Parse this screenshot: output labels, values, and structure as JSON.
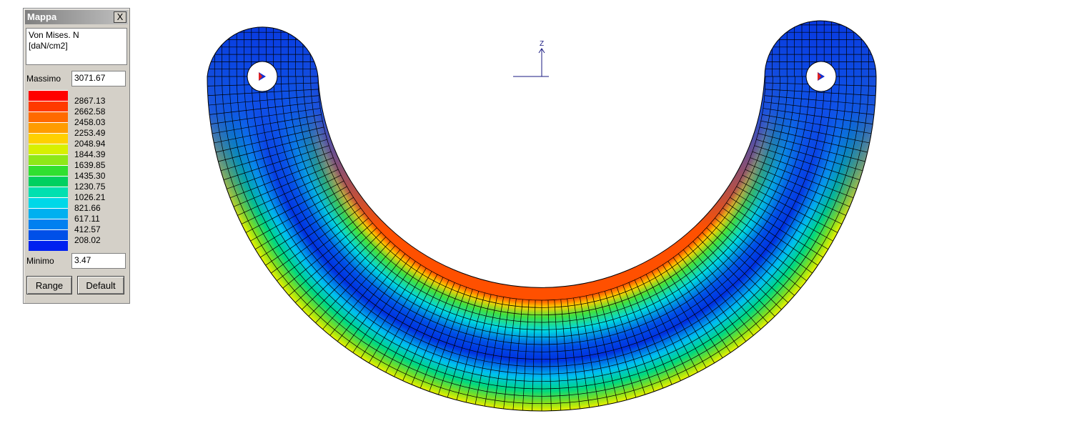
{
  "panel": {
    "title": "Mappa",
    "close": "X",
    "quantity": "Von Mises. N",
    "unit": "[daN/cm2]",
    "max_label": "Massimo",
    "max_value": "3071.67",
    "levels": [
      "2867.13",
      "2662.58",
      "2458.03",
      "2253.49",
      "2048.94",
      "1844.39",
      "1639.85",
      "1435.30",
      "1230.75",
      "1026.21",
      "821.66",
      "617.11",
      "412.57",
      "208.02"
    ],
    "colors": [
      "#ff0000",
      "#ff3a00",
      "#ff6a00",
      "#ff9c00",
      "#ffd000",
      "#d8f000",
      "#8ee818",
      "#30e030",
      "#00d060",
      "#00e0b0",
      "#00d8e8",
      "#00b0f0",
      "#0080f0",
      "#0050e8",
      "#0020f0"
    ],
    "min_label": "Minimo",
    "min_value": "3.47",
    "buttons": [
      "Range",
      "Default"
    ]
  },
  "axis": {
    "label": "Z"
  }
}
